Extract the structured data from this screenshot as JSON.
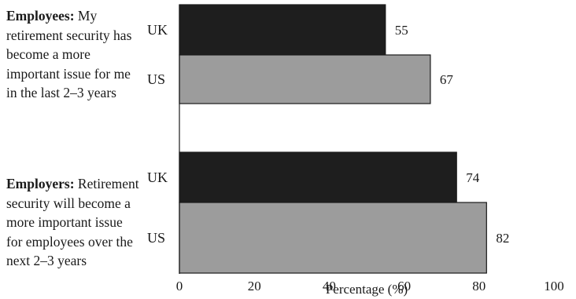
{
  "chart_data": {
    "type": "bar",
    "orientation": "horizontal",
    "groups": [
      {
        "label_bold": "Employees:",
        "label_rest": " My retirement security has become a more important issue for me in the last 2–3 years",
        "bars": [
          {
            "category": "UK",
            "value": 55
          },
          {
            "category": "US",
            "value": 67
          }
        ]
      },
      {
        "label_bold": "Employers:",
        "label_rest": " Retirement security will become a more important issue for employees over the next 2–3 years",
        "bars": [
          {
            "category": "UK",
            "value": 74
          },
          {
            "category": "US",
            "value": 82
          }
        ]
      }
    ],
    "xlabel": "Percentage (%)",
    "xlim": [
      0,
      100
    ],
    "xticks": [
      "0",
      "20",
      "40",
      "60",
      "80",
      "100"
    ],
    "bar_colors": {
      "UK": "#1e1e1e",
      "US": "#9c9c9c"
    },
    "grid": false
  }
}
